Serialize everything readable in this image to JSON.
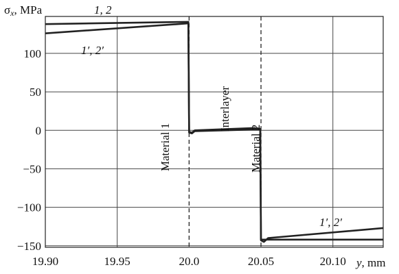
{
  "chart_data": {
    "type": "line",
    "ylabel_symbol": "σ",
    "ylabel_sub": "x",
    "ylabel_unit": ", MPa",
    "xlabel_var": "y",
    "xlabel_unit": ", mm",
    "xlim": [
      19.9,
      20.135
    ],
    "ylim": [
      -152,
      148
    ],
    "x_ticks": [
      19.9,
      19.95,
      20.0,
      20.05,
      20.1
    ],
    "x_tick_labels": [
      "19.90",
      "19.95",
      "20.0",
      "20.05",
      "20.10"
    ],
    "y_ticks": [
      -150,
      -100,
      -50,
      0,
      50,
      100
    ],
    "y_tick_labels": [
      "−150",
      "−100",
      "−50",
      "0",
      "50",
      "100"
    ],
    "grid": true,
    "interfaces": [
      20.0,
      20.05
    ],
    "region_labels": {
      "material1": "Material 1",
      "interlayer": "Interlayer",
      "material2": "Material 2"
    },
    "annotations": {
      "top_left": "1, 2",
      "left_primed": "1′, 2′",
      "right_primed": "1′, 2′"
    },
    "series": [
      {
        "x": [
          19.9,
          19.9995,
          20.0,
          20.002,
          20.004,
          20.045,
          20.0495,
          20.05,
          20.135
        ],
        "y": [
          138,
          141,
          -3,
          -4,
          -1,
          1,
          1,
          -142,
          -142
        ]
      },
      {
        "x": [
          19.9,
          19.9995,
          20.0,
          20.002,
          20.004,
          20.045,
          20.0495,
          20.05,
          20.052,
          20.055,
          20.135
        ],
        "y": [
          126,
          139,
          -2,
          -3,
          0,
          3,
          2,
          -143,
          -145,
          -140,
          -127
        ]
      }
    ]
  }
}
